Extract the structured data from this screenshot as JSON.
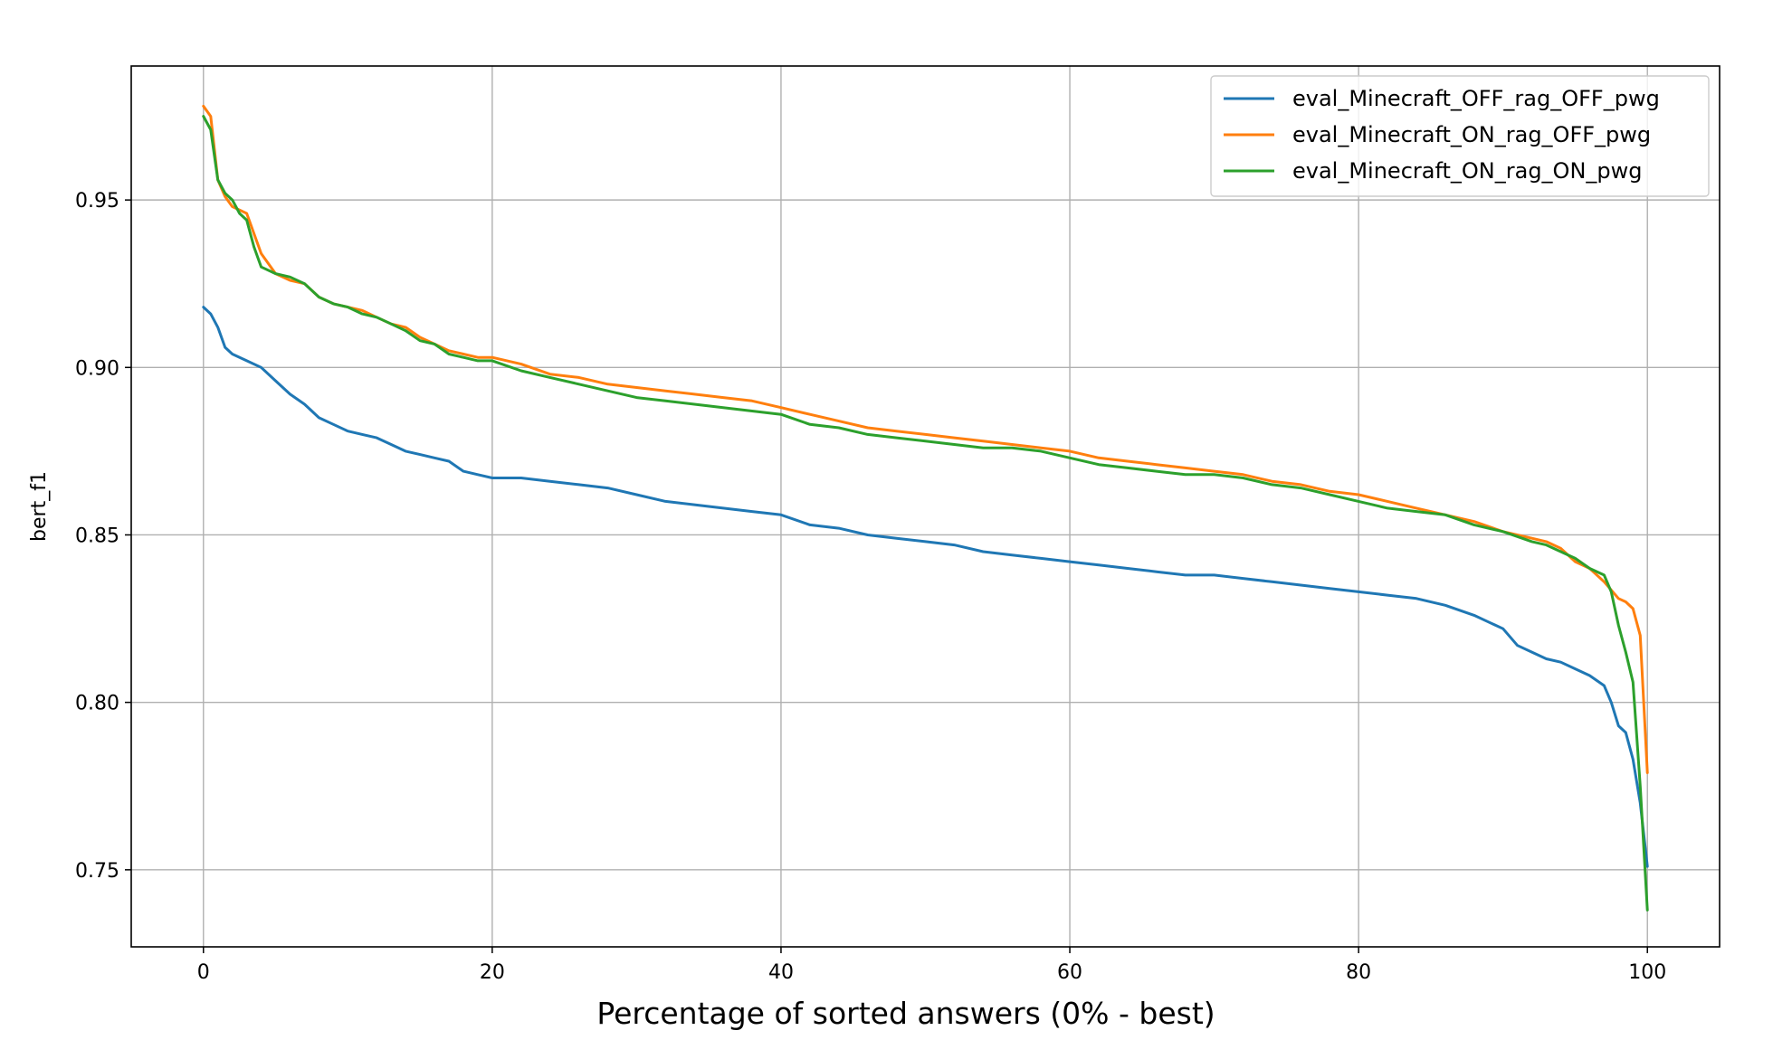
{
  "chart_data": {
    "type": "line",
    "title": "",
    "xlabel": "Percentage of sorted answers (0% - best)",
    "ylabel": "bert_f1",
    "xlim": [
      -5,
      105
    ],
    "ylim": [
      0.727,
      0.99
    ],
    "xticks": [
      0,
      20,
      40,
      60,
      80,
      100
    ],
    "xtick_labels": [
      "0",
      "20",
      "40",
      "60",
      "80",
      "100"
    ],
    "yticks": [
      0.75,
      0.8,
      0.85,
      0.9,
      0.95
    ],
    "ytick_labels": [
      "0.75",
      "0.80",
      "0.85",
      "0.90",
      "0.95"
    ],
    "grid": true,
    "legend_position": "top-right",
    "series": [
      {
        "name": "eval_Minecraft_OFF_rag_OFF_pwg",
        "color": "#1f77b4",
        "x": [
          0,
          0.5,
          1,
          1.5,
          2,
          3,
          4,
          5,
          6,
          7,
          8,
          9,
          10,
          11,
          12,
          13,
          14,
          15,
          16,
          17,
          18,
          19,
          20,
          22,
          24,
          26,
          28,
          30,
          32,
          34,
          36,
          38,
          40,
          42,
          44,
          46,
          48,
          50,
          52,
          54,
          56,
          58,
          60,
          62,
          64,
          66,
          68,
          70,
          72,
          74,
          76,
          78,
          80,
          82,
          84,
          86,
          88,
          89,
          90,
          91,
          92,
          93,
          94,
          95,
          96,
          97,
          97.5,
          98,
          98.5,
          99,
          99.5,
          100
        ],
        "values": [
          0.918,
          0.916,
          0.912,
          0.906,
          0.904,
          0.902,
          0.9,
          0.896,
          0.892,
          0.889,
          0.885,
          0.883,
          0.881,
          0.88,
          0.879,
          0.877,
          0.875,
          0.874,
          0.873,
          0.872,
          0.869,
          0.868,
          0.867,
          0.867,
          0.866,
          0.865,
          0.864,
          0.862,
          0.86,
          0.859,
          0.858,
          0.857,
          0.856,
          0.853,
          0.852,
          0.85,
          0.849,
          0.848,
          0.847,
          0.845,
          0.844,
          0.843,
          0.842,
          0.841,
          0.84,
          0.839,
          0.838,
          0.838,
          0.837,
          0.836,
          0.835,
          0.834,
          0.833,
          0.832,
          0.831,
          0.829,
          0.826,
          0.824,
          0.822,
          0.817,
          0.815,
          0.813,
          0.812,
          0.81,
          0.808,
          0.805,
          0.8,
          0.793,
          0.791,
          0.783,
          0.77,
          0.751
        ]
      },
      {
        "name": "eval_Minecraft_ON_rag_OFF_pwg",
        "color": "#ff7f0e",
        "x": [
          0,
          0.5,
          1,
          1.5,
          2,
          2.5,
          3,
          3.5,
          4,
          5,
          6,
          7,
          8,
          9,
          10,
          11,
          12,
          13,
          14,
          15,
          16,
          17,
          18,
          19,
          20,
          22,
          24,
          26,
          28,
          30,
          32,
          34,
          36,
          38,
          40,
          42,
          44,
          46,
          48,
          50,
          52,
          54,
          56,
          58,
          60,
          62,
          64,
          66,
          68,
          70,
          72,
          74,
          76,
          78,
          80,
          82,
          84,
          86,
          88,
          90,
          92,
          93,
          94,
          95,
          96,
          97,
          98,
          98.5,
          99,
          99.5,
          100
        ],
        "values": [
          0.978,
          0.975,
          0.956,
          0.951,
          0.948,
          0.947,
          0.946,
          0.94,
          0.934,
          0.928,
          0.926,
          0.925,
          0.921,
          0.919,
          0.918,
          0.917,
          0.915,
          0.913,
          0.912,
          0.909,
          0.907,
          0.905,
          0.904,
          0.903,
          0.903,
          0.901,
          0.898,
          0.897,
          0.895,
          0.894,
          0.893,
          0.892,
          0.891,
          0.89,
          0.888,
          0.886,
          0.884,
          0.882,
          0.881,
          0.88,
          0.879,
          0.878,
          0.877,
          0.876,
          0.875,
          0.873,
          0.872,
          0.871,
          0.87,
          0.869,
          0.868,
          0.866,
          0.865,
          0.863,
          0.862,
          0.86,
          0.858,
          0.856,
          0.854,
          0.851,
          0.849,
          0.848,
          0.846,
          0.842,
          0.84,
          0.836,
          0.831,
          0.83,
          0.828,
          0.82,
          0.779
        ]
      },
      {
        "name": "eval_Minecraft_ON_rag_ON_pwg",
        "color": "#2ca02c",
        "x": [
          0,
          0.5,
          1,
          1.5,
          2,
          2.5,
          3,
          3.5,
          4,
          5,
          6,
          7,
          8,
          9,
          10,
          11,
          12,
          13,
          14,
          15,
          16,
          17,
          18,
          19,
          20,
          22,
          24,
          26,
          28,
          30,
          32,
          34,
          36,
          38,
          40,
          42,
          44,
          46,
          48,
          50,
          52,
          54,
          56,
          58,
          60,
          62,
          64,
          66,
          68,
          70,
          72,
          74,
          76,
          78,
          80,
          82,
          84,
          86,
          88,
          90,
          92,
          93,
          94,
          95,
          96,
          97,
          97.5,
          98,
          98.5,
          99,
          99.5,
          100
        ],
        "values": [
          0.975,
          0.971,
          0.956,
          0.952,
          0.95,
          0.946,
          0.944,
          0.936,
          0.93,
          0.928,
          0.927,
          0.925,
          0.921,
          0.919,
          0.918,
          0.916,
          0.915,
          0.913,
          0.911,
          0.908,
          0.907,
          0.904,
          0.903,
          0.902,
          0.902,
          0.899,
          0.897,
          0.895,
          0.893,
          0.891,
          0.89,
          0.889,
          0.888,
          0.887,
          0.886,
          0.883,
          0.882,
          0.88,
          0.879,
          0.878,
          0.877,
          0.876,
          0.876,
          0.875,
          0.873,
          0.871,
          0.87,
          0.869,
          0.868,
          0.868,
          0.867,
          0.865,
          0.864,
          0.862,
          0.86,
          0.858,
          0.857,
          0.856,
          0.853,
          0.851,
          0.848,
          0.847,
          0.845,
          0.843,
          0.84,
          0.838,
          0.833,
          0.823,
          0.815,
          0.806,
          0.775,
          0.738
        ]
      }
    ]
  }
}
